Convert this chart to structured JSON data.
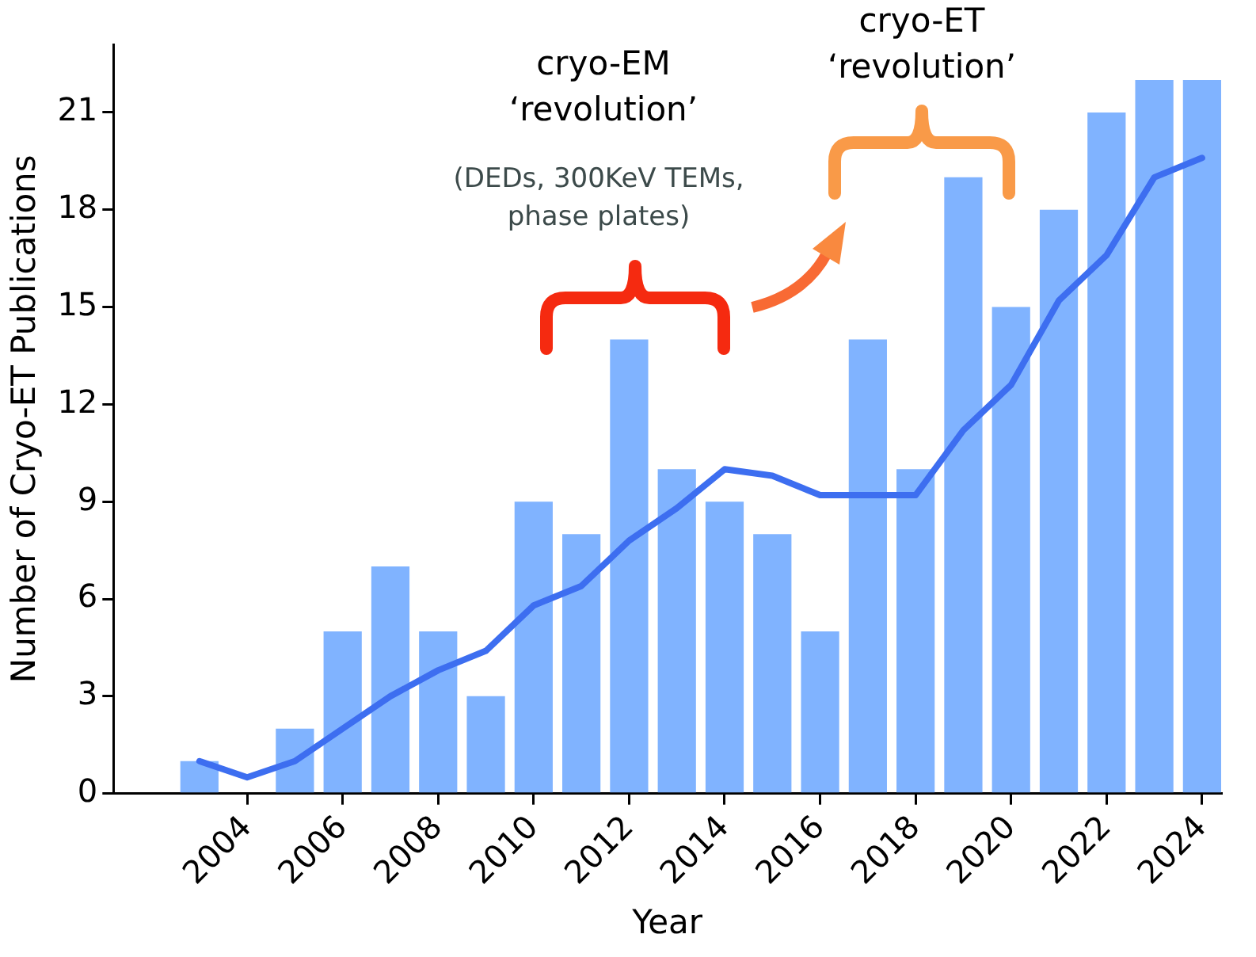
{
  "chart_data": {
    "type": "bar",
    "xlabel": "Year",
    "ylabel": "Number of Cryo-ET Publications",
    "x": [
      2003,
      2004,
      2005,
      2006,
      2007,
      2008,
      2009,
      2010,
      2011,
      2012,
      2013,
      2014,
      2015,
      2016,
      2017,
      2018,
      2019,
      2020,
      2021,
      2022,
      2023,
      2024
    ],
    "series": [
      {
        "color": "#80b3ff",
        "values": [
          1,
          0,
          2,
          5,
          7,
          5,
          3,
          9,
          8,
          14,
          10,
          9,
          8,
          5,
          14,
          10,
          19,
          15,
          18,
          21,
          22,
          22
        ]
      },
      {
        "type": "line",
        "color": "#3d6ef0",
        "values": [
          1.0,
          0.5,
          1.0,
          2.0,
          3.0,
          3.8,
          4.4,
          5.8,
          6.4,
          7.8,
          8.8,
          10.0,
          9.8,
          9.2,
          9.2,
          9.2,
          11.2,
          12.6,
          15.2,
          16.6,
          19.0,
          19.6
        ]
      }
    ],
    "xlim": [
      2001.2,
      2024.4
    ],
    "xticks": [
      2004,
      2006,
      2008,
      2010,
      2012,
      2014,
      2016,
      2018,
      2020,
      2022,
      2024
    ],
    "ylim": [
      0,
      23.1
    ],
    "yticks": [
      0,
      3,
      6,
      9,
      12,
      15,
      18,
      21
    ],
    "grid": false,
    "legend": false,
    "annotations": [
      "cryo-EM\n‘revolution’",
      "(DEDs, 300KeV TEMs,\nphase plates)",
      "cryo-ET\n‘revolution’"
    ]
  }
}
